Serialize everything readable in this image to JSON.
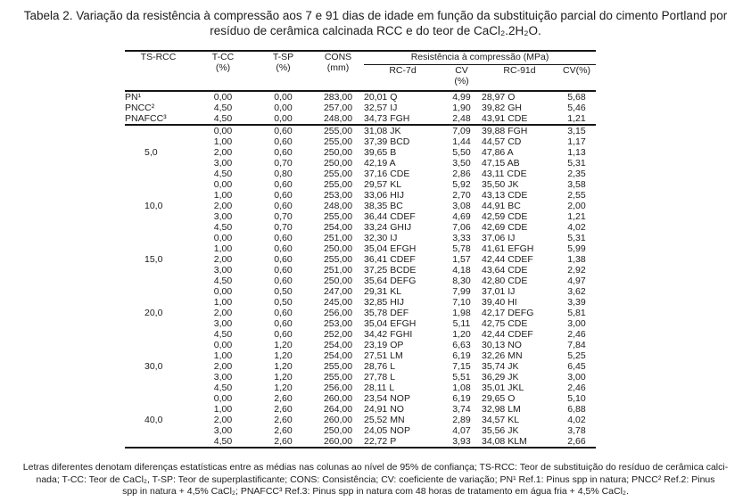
{
  "caption": {
    "line1": "Tabela 2. Variação da resistência à compressão aos 7 e 91 dias de idade em função da substituição parcial do cimento Portland por",
    "line2": "resíduo de cerâmica calcinada RCC e do teor de CaCl₂.2H₂O."
  },
  "table": {
    "columns": {
      "c1": "TS-RCC",
      "c2a": "T-CC",
      "c2b": "(%)",
      "c3a": "T-SP",
      "c3b": "(%)",
      "c4a": "CONS",
      "c4b": "(mm)",
      "span": "Resistência à compressão (MPa)",
      "c5": "RC-7d",
      "c6a": "CV",
      "c6b": "(%)",
      "c7": "RC-91d",
      "c8": "CV(%)"
    },
    "rows": [
      {
        "ts": "PN¹",
        "tcc": "0,00",
        "tsp": "0,00",
        "cons": "283,00",
        "rc7": "20,01 Q",
        "cv7": "4,99",
        "rc91": "28,97 O",
        "cv91": "5,68"
      },
      {
        "ts": "PNCC²",
        "tcc": "4,50",
        "tsp": "0,00",
        "cons": "257,00",
        "rc7": "32,57 IJ",
        "cv7": "1,90",
        "rc91": "39,82 GH",
        "cv91": "5,46"
      },
      {
        "ts": "PNAFCC³",
        "tcc": "4,50",
        "tsp": "0,00",
        "cons": "248,00",
        "rc7": "34,73 FGH",
        "cv7": "2,48",
        "rc91": "43,91 CDE",
        "cv91": "1,21",
        "sep": true
      },
      {
        "ts": "",
        "tcc": "0,00",
        "tsp": "0,60",
        "cons": "255,00",
        "rc7": "31,08 JK",
        "cv7": "7,09",
        "rc91": "39,88 FGH",
        "cv91": "3,15"
      },
      {
        "ts": "",
        "tcc": "1,00",
        "tsp": "0,60",
        "cons": "255,00",
        "rc7": "37,39 BCD",
        "cv7": "1,44",
        "rc91": "44,57 CD",
        "cv91": "1,17"
      },
      {
        "ts": "5,0",
        "tcc": "2,00",
        "tsp": "0,60",
        "cons": "250,00",
        "rc7": "39,65 B",
        "cv7": "5,50",
        "rc91": "47,86 A",
        "cv91": "1,13"
      },
      {
        "ts": "",
        "tcc": "3,00",
        "tsp": "0,70",
        "cons": "250,00",
        "rc7": "42,19 A",
        "cv7": "3,50",
        "rc91": "47,15 AB",
        "cv91": "5,31"
      },
      {
        "ts": "",
        "tcc": "4,50",
        "tsp": "0,80",
        "cons": "255,00",
        "rc7": "37,16 CDE",
        "cv7": "2,86",
        "rc91": "43,11 CDE",
        "cv91": "2,35"
      },
      {
        "ts": "",
        "tcc": "0,00",
        "tsp": "0,60",
        "cons": "255,00",
        "rc7": "29,57 KL",
        "cv7": "5,92",
        "rc91": "35,50 JK",
        "cv91": "3,58"
      },
      {
        "ts": "",
        "tcc": "1,00",
        "tsp": "0,60",
        "cons": "253,00",
        "rc7": "33,06 HIJ",
        "cv7": "2,70",
        "rc91": "43,13 CDE",
        "cv91": "2,55"
      },
      {
        "ts": "10,0",
        "tcc": "2,00",
        "tsp": "0,60",
        "cons": "248,00",
        "rc7": "38,35 BC",
        "cv7": "3,08",
        "rc91": "44,91 BC",
        "cv91": "2,00"
      },
      {
        "ts": "",
        "tcc": "3,00",
        "tsp": "0,70",
        "cons": "255,00",
        "rc7": "36,44 CDEF",
        "cv7": "4,69",
        "rc91": "42,59 CDE",
        "cv91": "1,21"
      },
      {
        "ts": "",
        "tcc": "4,50",
        "tsp": "0,70",
        "cons": "254,00",
        "rc7": "33,24 GHIJ",
        "cv7": "7,06",
        "rc91": "42,69 CDE",
        "cv91": "4,02"
      },
      {
        "ts": "",
        "tcc": "0,00",
        "tsp": "0,60",
        "cons": "251,00",
        "rc7": "32,30 IJ",
        "cv7": "3,33",
        "rc91": "37,06 IJ",
        "cv91": "5,31"
      },
      {
        "ts": "",
        "tcc": "1,00",
        "tsp": "0,60",
        "cons": "250,00",
        "rc7": "35,04 EFGH",
        "cv7": "5,78",
        "rc91": "41,61 EFGH",
        "cv91": "5,99"
      },
      {
        "ts": "15,0",
        "tcc": "2,00",
        "tsp": "0,60",
        "cons": "255,00",
        "rc7": "36,41 CDEF",
        "cv7": "1,57",
        "rc91": "42,44 CDEF",
        "cv91": "1,38"
      },
      {
        "ts": "",
        "tcc": "3,00",
        "tsp": "0,60",
        "cons": "251,00",
        "rc7": "37,25 BCDE",
        "cv7": "4,18",
        "rc91": "43,64 CDE",
        "cv91": "2,92"
      },
      {
        "ts": "",
        "tcc": "4,50",
        "tsp": "0,60",
        "cons": "250,00",
        "rc7": "35,64 DEFG",
        "cv7": "8,30",
        "rc91": "42,80 CDE",
        "cv91": "4,97"
      },
      {
        "ts": "",
        "tcc": "0,00",
        "tsp": "0,50",
        "cons": "247,00",
        "rc7": "29,31 KL",
        "cv7": "7,99",
        "rc91": "37,01 IJ",
        "cv91": "3,62"
      },
      {
        "ts": "",
        "tcc": "1,00",
        "tsp": "0,50",
        "cons": "245,00",
        "rc7": "32,85 HIJ",
        "cv7": "7,10",
        "rc91": "39,40 HI",
        "cv91": "3,39"
      },
      {
        "ts": "20,0",
        "tcc": "2,00",
        "tsp": "0,60",
        "cons": "256,00",
        "rc7": "35,78 DEF",
        "cv7": "1,98",
        "rc91": "42,17 DEFG",
        "cv91": "5,81"
      },
      {
        "ts": "",
        "tcc": "3,00",
        "tsp": "0,60",
        "cons": "253,00",
        "rc7": "35,04 EFGH",
        "cv7": "5,11",
        "rc91": "42,75 CDE",
        "cv91": "3,00"
      },
      {
        "ts": "",
        "tcc": "4,50",
        "tsp": "0,60",
        "cons": "252,00",
        "rc7": "34,42 FGHI",
        "cv7": "1,20",
        "rc91": "42,44 CDEF",
        "cv91": "2,46"
      },
      {
        "ts": "",
        "tcc": "0,00",
        "tsp": "1,20",
        "cons": "254,00",
        "rc7": "23,19 OP",
        "cv7": "6,63",
        "rc91": "30,13 NO",
        "cv91": "7,84"
      },
      {
        "ts": "",
        "tcc": "1,00",
        "tsp": "1,20",
        "cons": "254,00",
        "rc7": "27,51 LM",
        "cv7": "6,19",
        "rc91": "32,26 MN",
        "cv91": "5,25"
      },
      {
        "ts": "30,0",
        "tcc": "2,00",
        "tsp": "1,20",
        "cons": "255,00",
        "rc7": "28,76 L",
        "cv7": "7,15",
        "rc91": "35,74 JK",
        "cv91": "6,45"
      },
      {
        "ts": "",
        "tcc": "3,00",
        "tsp": "1,20",
        "cons": "255,00",
        "rc7": "27,78 L",
        "cv7": "5,51",
        "rc91": "36,29 JK",
        "cv91": "3,00"
      },
      {
        "ts": "",
        "tcc": "4,50",
        "tsp": "1,20",
        "cons": "256,00",
        "rc7": "28,11 L",
        "cv7": "1,08",
        "rc91": "35,01 JKL",
        "cv91": "2,46"
      },
      {
        "ts": "",
        "tcc": "0,00",
        "tsp": "2,60",
        "cons": "260,00",
        "rc7": "23,54 NOP",
        "cv7": "6,19",
        "rc91": "29,65 O",
        "cv91": "5,10"
      },
      {
        "ts": "",
        "tcc": "1,00",
        "tsp": "2,60",
        "cons": "264,00",
        "rc7": "24,91 NO",
        "cv7": "3,74",
        "rc91": "32,98 LM",
        "cv91": "6,88"
      },
      {
        "ts": "40,0",
        "tcc": "2,00",
        "tsp": "2,60",
        "cons": "260,00",
        "rc7": "25,52 MN",
        "cv7": "2,89",
        "rc91": "34,57 KL",
        "cv91": "4,02"
      },
      {
        "ts": "",
        "tcc": "3,00",
        "tsp": "2,60",
        "cons": "250,00",
        "rc7": "24,05 NOP",
        "cv7": "4,07",
        "rc91": "35,56 JK",
        "cv91": "3,78"
      },
      {
        "ts": "",
        "tcc": "4,50",
        "tsp": "2,60",
        "cons": "260,00",
        "rc7": "22,72 P",
        "cv7": "3,93",
        "rc91": "34,08 KLM",
        "cv91": "2,66"
      }
    ]
  },
  "footnote": {
    "line1": "Letras diferentes denotam diferenças estatísticas entre as médias nas colunas ao nível de 95% de confiança; TS-RCC: Teor de substituição do resíduo de cerâmica calci-",
    "line2": "nada; T-CC: Teor de CaCl₂, T-SP: Teor de superplastificante; CONS: Consistência; CV: coeficiente de variação; PN¹ Ref.1: Pinus spp in natura; PNCC² Ref.2: Pinus",
    "line3": "spp in natura + 4,5% CaCl₂;  PNAFCC³ Ref.3: Pinus spp in natura com 48 horas de tratamento em água fria + 4,5% CaCl₂."
  }
}
